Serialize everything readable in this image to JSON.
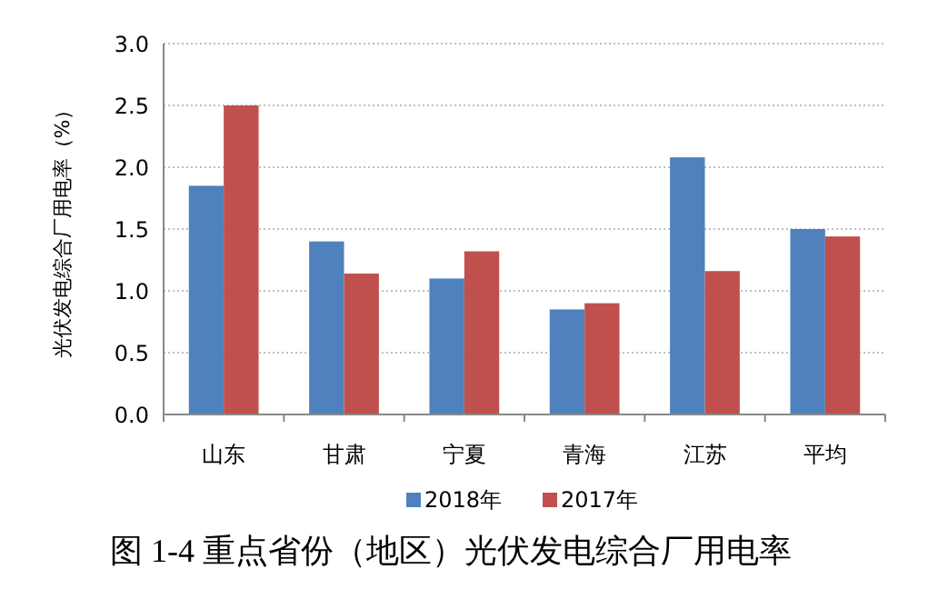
{
  "chart_data": {
    "type": "bar",
    "title": "图 1-4 重点省份（地区）光伏发电综合厂用电率",
    "ylabel": "光伏发电综合厂用电率（%）",
    "categories": [
      "山东",
      "甘肃",
      "宁夏",
      "青海",
      "江苏",
      "平均"
    ],
    "series": [
      {
        "name": "2018年",
        "color": "#4f81bd",
        "values": [
          1.85,
          1.4,
          1.1,
          0.85,
          2.08,
          1.5
        ]
      },
      {
        "name": "2017年",
        "color": "#c0504d",
        "values": [
          2.5,
          1.14,
          1.32,
          0.9,
          1.16,
          1.44
        ]
      }
    ],
    "ylim": [
      0,
      3
    ],
    "yticks": [
      {
        "value": 0,
        "label": "0.0"
      },
      0.5,
      {
        "value": 1,
        "label": "1.0"
      },
      1.5,
      {
        "value": 2,
        "label": "2.0"
      },
      2.5,
      {
        "value": 3,
        "label": "3.0"
      }
    ],
    "grid": "y",
    "legend": "bottom"
  }
}
